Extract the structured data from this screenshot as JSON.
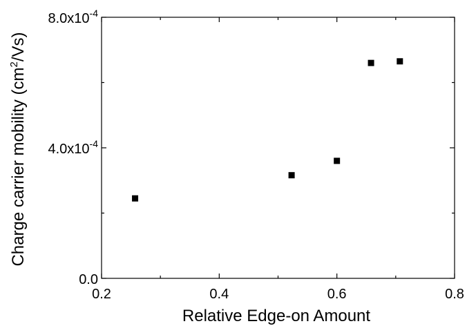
{
  "chart_data": {
    "type": "scatter",
    "title": "",
    "xlabel": "Relative Edge-on Amount",
    "ylabel": {
      "before": "Charge carrier mobility (cm",
      "sup": "2",
      "after": "/Vs)"
    },
    "xlim": [
      0.2,
      0.8
    ],
    "ylim": [
      0,
      0.0008
    ],
    "xticks": [
      {
        "value": 0.2,
        "label": "0.2"
      },
      {
        "value": 0.4,
        "label": "0.4"
      },
      {
        "value": 0.6,
        "label": "0.6"
      },
      {
        "value": 0.8,
        "label": "0.8"
      }
    ],
    "xminor": [
      0.3,
      0.5,
      0.7
    ],
    "yticks": [
      {
        "value": 0,
        "mant": "0.0",
        "exp": ""
      },
      {
        "value": 0.0004,
        "mant": "4.0x10",
        "exp": "-4"
      },
      {
        "value": 0.0008,
        "mant": "8.0x10",
        "exp": "-4"
      }
    ],
    "yminor": [
      0.0002,
      0.0006
    ],
    "grid": false,
    "marker": "square",
    "marker_color": "#000000",
    "series": [
      {
        "points": [
          {
            "x": 0.257,
            "y": 0.000245
          },
          {
            "x": 0.523,
            "y": 0.000316
          },
          {
            "x": 0.6,
            "y": 0.00036
          },
          {
            "x": 0.658,
            "y": 0.00066
          },
          {
            "x": 0.707,
            "y": 0.000665
          }
        ]
      }
    ]
  }
}
